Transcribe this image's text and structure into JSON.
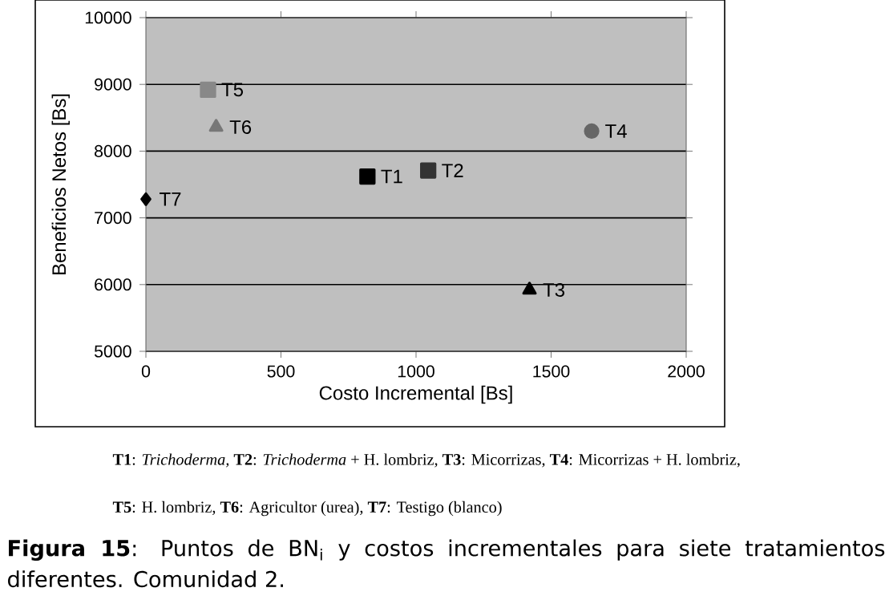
{
  "chart_data": {
    "type": "scatter",
    "xlabel": "Costo Incremental [Bs]",
    "ylabel": "Beneficios Netos [Bs]",
    "xlim": [
      0,
      2000
    ],
    "xticks": [
      0,
      500,
      1000,
      1500,
      2000
    ],
    "ylim": [
      5000,
      10000
    ],
    "yticks": [
      5000,
      6000,
      7000,
      8000,
      9000,
      10000
    ],
    "grid": "y",
    "series": [
      {
        "name": "T1",
        "color": "#000000",
        "marker": "square",
        "x": [
          820
        ],
        "values": [
          7620
        ]
      },
      {
        "name": "T2",
        "color": "#333333",
        "marker": "square",
        "x": [
          1045
        ],
        "values": [
          7710
        ]
      },
      {
        "name": "T3",
        "color": "#000000",
        "marker": "triangle",
        "x": [
          1420
        ],
        "values": [
          5920
        ]
      },
      {
        "name": "T4",
        "color": "#666666",
        "marker": "circle",
        "x": [
          1650
        ],
        "values": [
          8300
        ]
      },
      {
        "name": "T5",
        "color": "#888888",
        "marker": "square",
        "x": [
          230
        ],
        "values": [
          8920
        ]
      },
      {
        "name": "T6",
        "color": "#777777",
        "marker": "triangle",
        "x": [
          260
        ],
        "values": [
          8360
        ]
      },
      {
        "name": "T7",
        "color": "#000000",
        "marker": "diamond",
        "x": [
          0
        ],
        "values": [
          7280
        ]
      }
    ],
    "annotations": [
      "**T1**: *Trichoderma,* **T2**: *Trichoderma* + H. lombriz, **T3**: Micorrizas, **T4**: Micorrizas + H. lombriz,",
      "**T5**: H. lombriz, **T6**: Agricultor (urea), **T7**: Testigo (blanco)",
      "**Figura 15**: Puntos de BN$_{i}$ y costos incrementales para siete tratamientos diferentes. Comunidad 2."
    ]
  }
}
